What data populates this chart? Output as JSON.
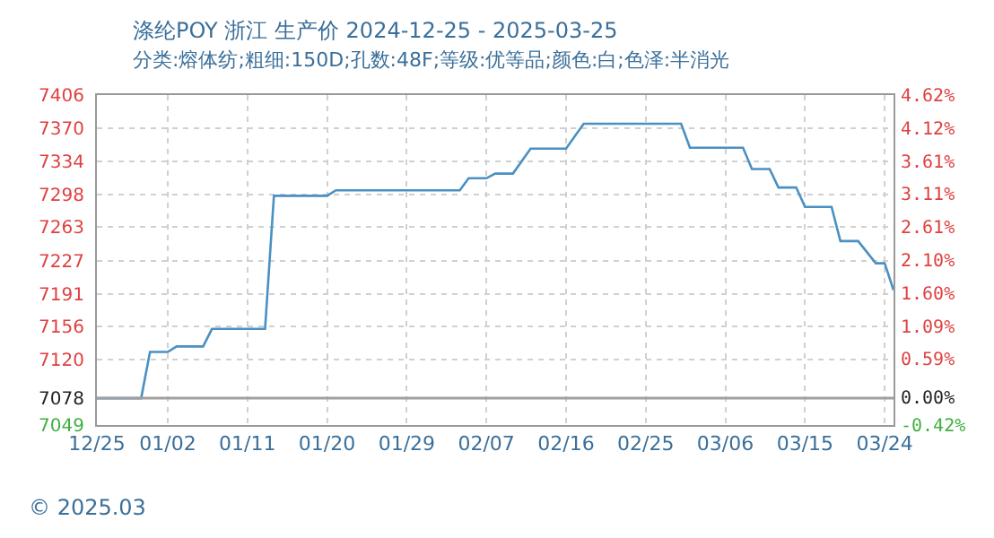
{
  "chart_data": {
    "type": "line",
    "title": "涤纶POY 浙江 生产价 2024-12-25 - 2025-03-25",
    "subtitle": "分类:熔体纺;粗细:150D;孔数:48F;等级:优等品;颜色:白;色泽:半消光",
    "annotations": [
      "© 2025.03"
    ],
    "x": [
      "2024-12-25",
      "2024-12-30",
      "2024-12-31",
      "2025-01-02",
      "2025-01-03",
      "2025-01-06",
      "2025-01-07",
      "2025-01-13",
      "2025-01-14",
      "2025-01-20",
      "2025-01-21",
      "2025-02-04",
      "2025-02-05",
      "2025-02-07",
      "2025-02-08",
      "2025-02-10",
      "2025-02-12",
      "2025-02-16",
      "2025-02-18",
      "2025-03-01",
      "2025-03-02",
      "2025-03-08",
      "2025-03-09",
      "2025-03-11",
      "2025-03-12",
      "2025-03-14",
      "2025-03-15",
      "2025-03-18",
      "2025-03-19",
      "2025-03-21",
      "2025-03-23",
      "2025-03-24",
      "2025-03-25"
    ],
    "series": [
      {
        "color": "#4a90c2",
        "values": [
          7078,
          7078,
          7128,
          7128,
          7134,
          7134,
          7153,
          7153,
          7297,
          7297,
          7303,
          7303,
          7316,
          7316,
          7321,
          7321,
          7348,
          7348,
          7375,
          7375,
          7349,
          7349,
          7326,
          7326,
          7306,
          7306,
          7285,
          7285,
          7248,
          7248,
          7224,
          7224,
          7195
        ]
      }
    ],
    "xlim": [
      "2024-12-25",
      "2025-03-25"
    ],
    "xticks": [
      {
        "value": "2024-12-25",
        "label": "12/25"
      },
      {
        "value": "2025-01-02",
        "label": "01/02"
      },
      {
        "value": "2025-01-11",
        "label": "01/11"
      },
      {
        "value": "2025-01-20",
        "label": "01/20"
      },
      {
        "value": "2025-01-29",
        "label": "01/29"
      },
      {
        "value": "2025-02-07",
        "label": "02/07"
      },
      {
        "value": "2025-02-16",
        "label": "02/16"
      },
      {
        "value": "2025-02-25",
        "label": "02/25"
      },
      {
        "value": "2025-03-06",
        "label": "03/06"
      },
      {
        "value": "2025-03-15",
        "label": "03/15"
      },
      {
        "value": "2025-03-24",
        "label": "03/24"
      }
    ],
    "ylim": [
      7049,
      7406
    ],
    "yticks": [
      7049,
      7078,
      7120,
      7156,
      7191,
      7227,
      7263,
      7298,
      7334,
      7370,
      7406
    ],
    "y2lim": [
      -0.42,
      4.62
    ],
    "y2ticks": [
      {
        "value": -0.42,
        "label": "-0.42%"
      },
      {
        "value": 0,
        "label": "0.00%"
      },
      {
        "value": 0.59,
        "label": "0.59%"
      },
      {
        "value": 1.09,
        "label": "1.09%"
      },
      {
        "value": 1.6,
        "label": "1.60%"
      },
      {
        "value": 2.1,
        "label": "2.10%"
      },
      {
        "value": 2.61,
        "label": "2.61%"
      },
      {
        "value": 3.11,
        "label": "3.11%"
      },
      {
        "value": 3.61,
        "label": "3.61%"
      },
      {
        "value": 4.12,
        "label": "4.12%"
      },
      {
        "value": 4.62,
        "label": "4.62%"
      }
    ],
    "ref_lines": [
      {
        "axis": "y",
        "value": 7078,
        "color": "#a0a0a0"
      }
    ],
    "grid": true,
    "marker": "none",
    "line_style": "solid"
  }
}
